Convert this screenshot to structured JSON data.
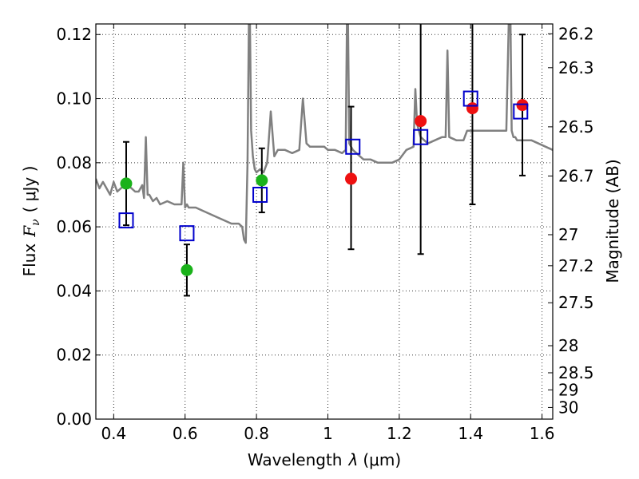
{
  "chart_data": {
    "type": "scatter",
    "xlabel": "Wavelength",
    "xlabel_symbol": "λ",
    "xlabel_unit": "(μm)",
    "ylabel": "Flux",
    "ylabel_symbol": "F",
    "ylabel_subscript": "ν",
    "ylabel_unit": "( μJy )",
    "ylabel_right": "Magnitude (AB)",
    "xlim": [
      0.35,
      1.63
    ],
    "ylim": [
      0.0,
      0.1233
    ],
    "x_ticks": [
      0.4,
      0.6,
      0.8,
      1.0,
      1.2,
      1.4,
      1.6
    ],
    "x_tick_labels": [
      "0.4",
      "0.6",
      "0.8",
      "1",
      "1.2",
      "1.4",
      "1.6"
    ],
    "y_ticks": [
      0.0,
      0.02,
      0.04,
      0.06,
      0.08,
      0.1,
      0.12
    ],
    "y_tick_labels": [
      "0.00",
      "0.02",
      "0.04",
      "0.06",
      "0.08",
      "0.10",
      "0.12"
    ],
    "right_axis": {
      "labels": [
        "26.2",
        "26.3",
        "26.5",
        "26.7",
        "27",
        "27.2",
        "27.5",
        "28",
        "28.5",
        "29",
        "30"
      ],
      "magnitudes": [
        26.2,
        26.3,
        26.5,
        26.7,
        27.0,
        27.2,
        27.5,
        28.0,
        28.5,
        29.0,
        30.0
      ]
    },
    "grid": true,
    "series": [
      {
        "name": "model spectrum",
        "kind": "line",
        "color": "#808080",
        "x": [
          0.35,
          0.36,
          0.37,
          0.38,
          0.39,
          0.4,
          0.41,
          0.42,
          0.43,
          0.44,
          0.45,
          0.46,
          0.47,
          0.48,
          0.485,
          0.49,
          0.495,
          0.5,
          0.51,
          0.52,
          0.53,
          0.55,
          0.57,
          0.59,
          0.595,
          0.6,
          0.605,
          0.61,
          0.63,
          0.65,
          0.67,
          0.69,
          0.71,
          0.73,
          0.75,
          0.76,
          0.765,
          0.77,
          0.775,
          0.78,
          0.785,
          0.79,
          0.795,
          0.8,
          0.81,
          0.82,
          0.83,
          0.84,
          0.85,
          0.86,
          0.88,
          0.9,
          0.92,
          0.93,
          0.94,
          0.95,
          0.97,
          0.99,
          1.0,
          1.02,
          1.04,
          1.05,
          1.055,
          1.06,
          1.065,
          1.07,
          1.09,
          1.1,
          1.12,
          1.14,
          1.16,
          1.18,
          1.2,
          1.22,
          1.24,
          1.245,
          1.25,
          1.255,
          1.26,
          1.28,
          1.3,
          1.32,
          1.33,
          1.335,
          1.34,
          1.36,
          1.38,
          1.39,
          1.4,
          1.42,
          1.44,
          1.46,
          1.48,
          1.5,
          1.51,
          1.515,
          1.52,
          1.525,
          1.53,
          1.55,
          1.57,
          1.59,
          1.61,
          1.63
        ],
        "y": [
          0.075,
          0.072,
          0.074,
          0.072,
          0.07,
          0.074,
          0.071,
          0.072,
          0.073,
          0.073,
          0.072,
          0.071,
          0.071,
          0.073,
          0.069,
          0.088,
          0.07,
          0.07,
          0.068,
          0.069,
          0.067,
          0.068,
          0.067,
          0.067,
          0.08,
          0.066,
          0.067,
          0.066,
          0.066,
          0.065,
          0.064,
          0.063,
          0.062,
          0.061,
          0.061,
          0.06,
          0.056,
          0.055,
          0.08,
          0.14,
          0.09,
          0.082,
          0.078,
          0.077,
          0.078,
          0.077,
          0.08,
          0.096,
          0.082,
          0.084,
          0.084,
          0.083,
          0.084,
          0.1,
          0.086,
          0.085,
          0.085,
          0.085,
          0.084,
          0.084,
          0.083,
          0.084,
          0.14,
          0.086,
          0.085,
          0.084,
          0.082,
          0.081,
          0.081,
          0.08,
          0.08,
          0.08,
          0.081,
          0.084,
          0.085,
          0.103,
          0.092,
          0.09,
          0.088,
          0.086,
          0.087,
          0.088,
          0.088,
          0.115,
          0.088,
          0.087,
          0.087,
          0.09,
          0.09,
          0.09,
          0.09,
          0.09,
          0.09,
          0.09,
          0.14,
          0.09,
          0.088,
          0.088,
          0.087,
          0.087,
          0.087,
          0.086,
          0.085,
          0.084
        ]
      },
      {
        "name": "observed (green)",
        "kind": "points",
        "marker": "circle",
        "color": "#1ab21a",
        "x": [
          0.435,
          0.605,
          0.815
        ],
        "y": [
          0.0735,
          0.0465,
          0.0745
        ]
      },
      {
        "name": "observed (red)",
        "kind": "points",
        "marker": "circle",
        "color": "#ee1111",
        "x": [
          1.065,
          1.26,
          1.405,
          1.545
        ],
        "y": [
          0.075,
          0.093,
          0.097,
          0.098
        ]
      },
      {
        "name": "model photometry",
        "kind": "points",
        "marker": "square",
        "color": "#0000cc",
        "x": [
          0.435,
          0.605,
          0.81,
          1.07,
          1.26,
          1.4,
          1.54
        ],
        "y": [
          0.062,
          0.058,
          0.07,
          0.085,
          0.088,
          0.1,
          0.096
        ]
      },
      {
        "name": "error bars",
        "kind": "errorbars",
        "color": "#000000",
        "x": [
          0.435,
          0.605,
          0.815,
          1.065,
          1.26,
          1.405,
          1.545
        ],
        "low": [
          0.0605,
          0.0385,
          0.0645,
          0.053,
          0.0515,
          0.067,
          0.076
        ],
        "high": [
          0.0865,
          0.0545,
          0.0845,
          0.0975,
          0.141,
          0.141,
          0.12
        ]
      }
    ]
  }
}
